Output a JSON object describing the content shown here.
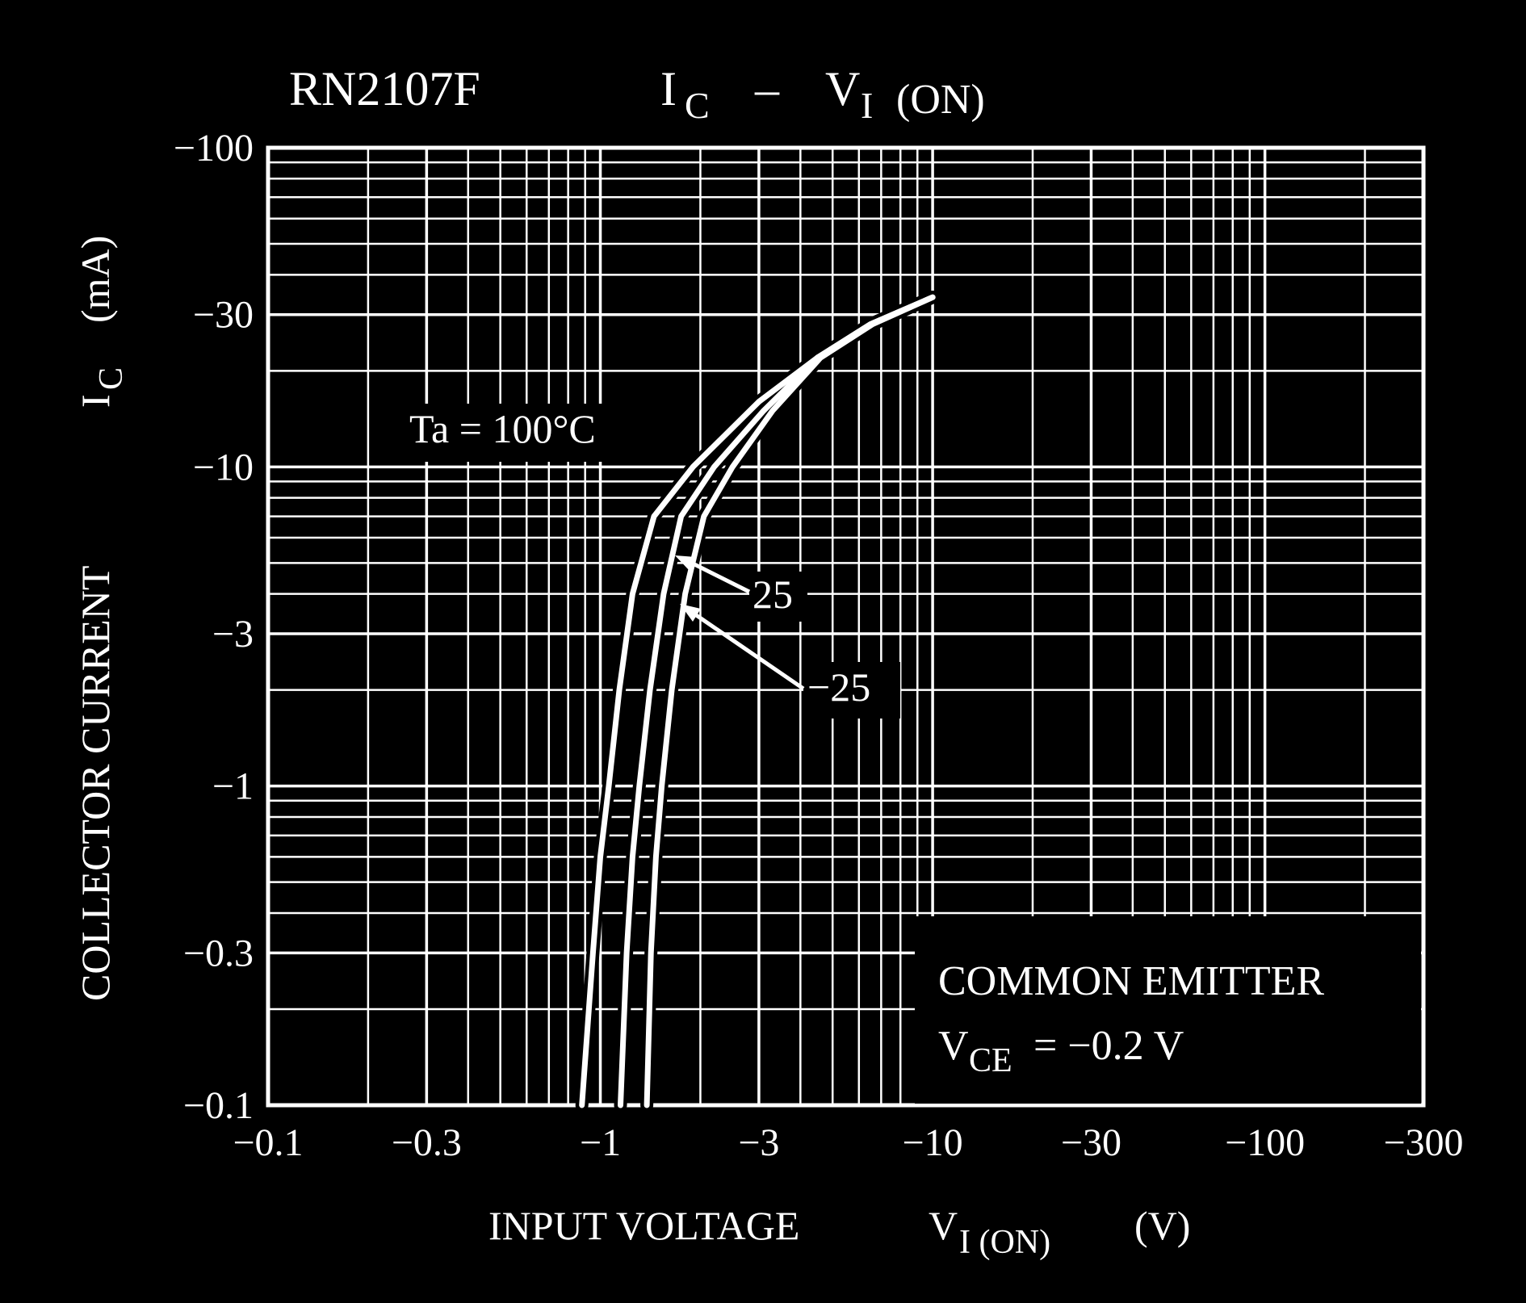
{
  "title": {
    "part_number": "RN2107F",
    "quantity": "I",
    "quantity_sub": "C",
    "dash": "–",
    "quantity2": "V",
    "quantity2_sub": "I",
    "quantity2_cond": "(ON)"
  },
  "axes": {
    "x_title_main": "INPUT  VOLTAGE",
    "x_title_symbol": "V",
    "x_title_symbol_sub": "I (ON)",
    "x_title_unit": "(V)",
    "y_title_main": "COLLECTOR CURRENT",
    "y_title_symbol": "I",
    "y_title_symbol_sub": "C",
    "y_title_unit": "(mA)"
  },
  "annotations": {
    "ta_label": "Ta = 100°C",
    "label_25": "25",
    "label_minus25": "−25",
    "conditions_line1": "COMMON EMITTER",
    "conditions_line2_symbol": "V",
    "conditions_line2_sub": "CE",
    "conditions_line2_value": " = −0.2 V"
  },
  "colors": {
    "background": "#000000",
    "foreground": "#ffffff"
  },
  "chart_data": {
    "type": "line",
    "x_scale": "log",
    "y_scale": "log",
    "xlim": [
      -0.1,
      -300
    ],
    "ylim": [
      -0.1,
      -100
    ],
    "x_ticks": [
      -0.1,
      -0.3,
      -1,
      -3,
      -10,
      -30,
      -100,
      -300
    ],
    "x_tick_labels": [
      "−0.1",
      "−0.3",
      "−1",
      "−3",
      "−10",
      "−30",
      "−100",
      "−300"
    ],
    "y_ticks": [
      -0.1,
      -0.3,
      -1,
      -3,
      -10,
      -30,
      -100
    ],
    "y_tick_labels": [
      "−0.1",
      "−0.3",
      "−1",
      "−3",
      "−10",
      "−30",
      "−100"
    ],
    "grid": true,
    "series": [
      {
        "name": "Ta = 100°C",
        "x": [
          -0.88,
          -0.95,
          -1.0,
          -1.06,
          -1.14,
          -1.25,
          -1.45,
          -1.9,
          -3.0,
          -4.5,
          -6.5,
          -10
        ],
        "y": [
          -0.1,
          -0.3,
          -0.6,
          -1.0,
          -2.0,
          -4.0,
          -7.0,
          -10,
          -16,
          -22,
          -28,
          -34
        ]
      },
      {
        "name": "25",
        "x": [
          -1.15,
          -1.2,
          -1.25,
          -1.31,
          -1.41,
          -1.55,
          -1.75,
          -2.2,
          -3.1,
          -4.5,
          -6.5,
          -10
        ],
        "y": [
          -0.1,
          -0.3,
          -0.6,
          -1.0,
          -2.0,
          -4.0,
          -7.0,
          -10,
          -15,
          -22,
          -28,
          -34
        ]
      },
      {
        "name": "−25",
        "x": [
          -1.38,
          -1.42,
          -1.47,
          -1.53,
          -1.64,
          -1.8,
          -2.05,
          -2.5,
          -3.3,
          -4.6,
          -6.6,
          -10
        ],
        "y": [
          -0.1,
          -0.3,
          -0.6,
          -1.0,
          -2.0,
          -4.0,
          -7.0,
          -10,
          -15,
          -22,
          -28,
          -34
        ]
      }
    ]
  }
}
